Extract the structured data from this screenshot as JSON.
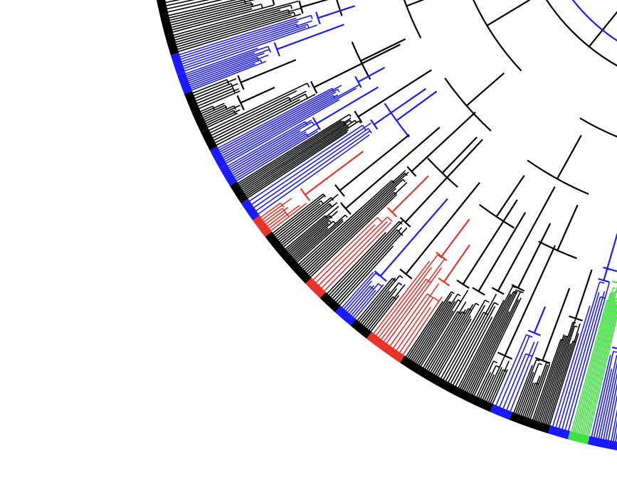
{
  "figure": {
    "kind": "circular-phylogenetic-tree-crop",
    "background": "#ffffff",
    "branch_colors": {
      "default": "#000000",
      "blue": "#1a1aff",
      "red": "#e8322a",
      "green": "#3fe03f"
    },
    "tip_band_colors_sequence": [
      "blue",
      "blue",
      "black",
      "red",
      "black",
      "blue",
      "blue",
      "green",
      "blue",
      "black",
      "black",
      "blue",
      "black",
      "black",
      "black",
      "black",
      "black",
      "red",
      "red",
      "black",
      "blue",
      "black",
      "red",
      "black",
      "black",
      "black",
      "red",
      "blue",
      "black",
      "blue",
      "blue",
      "black",
      "black",
      "black",
      "blue",
      "blue",
      "black",
      "black",
      "black"
    ]
  }
}
